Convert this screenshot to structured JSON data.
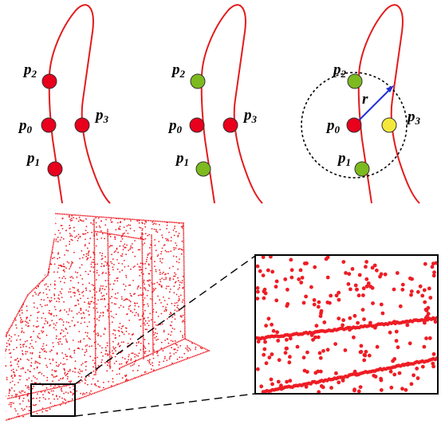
{
  "colors": {
    "curve": "#e31a1c",
    "point_red": "#e8001c",
    "point_green": "#7dba1f",
    "point_yellow": "#f3e83a",
    "arrow": "#1f2fd6",
    "dots": "#ee1c24"
  },
  "panels": [
    {
      "points": [
        {
          "base": "p",
          "sub": "2",
          "state": "red"
        },
        {
          "base": "p",
          "sub": "0",
          "state": "red"
        },
        {
          "base": "p",
          "sub": "3",
          "state": "red"
        },
        {
          "base": "p",
          "sub": "1",
          "state": "red"
        }
      ]
    },
    {
      "points": [
        {
          "base": "p",
          "sub": "2",
          "state": "green"
        },
        {
          "base": "p",
          "sub": "0",
          "state": "red"
        },
        {
          "base": "p",
          "sub": "3",
          "state": "red"
        },
        {
          "base": "p",
          "sub": "1",
          "state": "green"
        }
      ]
    },
    {
      "points": [
        {
          "base": "p",
          "sub": "2",
          "state": "green"
        },
        {
          "base": "p",
          "sub": "0",
          "state": "red"
        },
        {
          "base": "p",
          "sub": "3",
          "state": "yellow"
        },
        {
          "base": "p",
          "sub": "1",
          "state": "green"
        }
      ],
      "radius_label": "r"
    }
  ]
}
